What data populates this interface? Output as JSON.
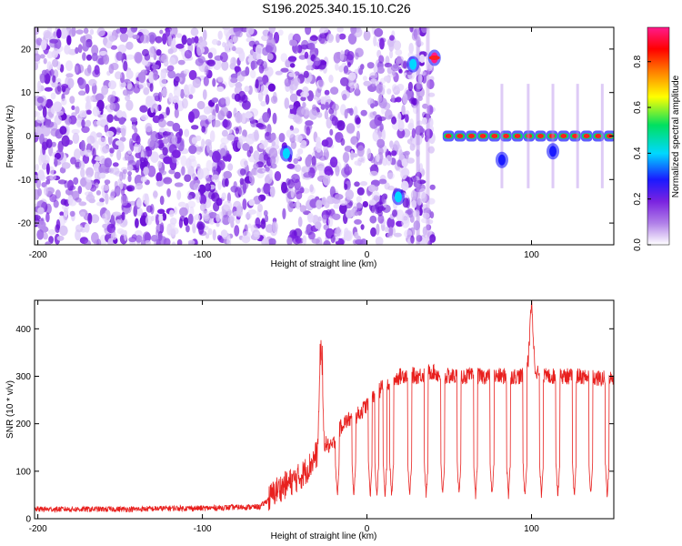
{
  "title": "S196.2025.340.15.10.C26",
  "chart_data": [
    {
      "type": "heatmap",
      "xlabel": "Height of straight line (km)",
      "ylabel": "Frequency (Hz)",
      "xlim": [
        -202,
        150
      ],
      "ylim": [
        -25,
        25
      ],
      "x_ticks": [
        "-200",
        "-100",
        "0",
        "100"
      ],
      "y_ticks": [
        "-20",
        "-10",
        "0",
        "10",
        "20"
      ],
      "colorbar": {
        "label": "Normalized spectral amplitude",
        "range": [
          0.0,
          0.95
        ],
        "ticks": [
          "0.0",
          "0.2",
          "0.4",
          "0.6",
          "0.8"
        ]
      },
      "colormap": [
        "#ffffff",
        "#b07fe8",
        "#7a22e0",
        "#1a1aff",
        "#00d8ff",
        "#00e060",
        "#ffff00",
        "#ff7a00",
        "#ff0000",
        "#ff1a8c"
      ],
      "features": [
        {
          "x": -49,
          "y": -4,
          "amplitude": 0.4
        },
        {
          "x": 19,
          "y": -14,
          "amplitude": 0.45
        },
        {
          "x": 28,
          "y": 16.5,
          "amplitude": 0.45
        },
        {
          "x": 41,
          "y": 18,
          "amplitude": 0.9
        },
        {
          "x": 82,
          "y": -5.5,
          "amplitude": 0.35
        },
        {
          "x": 113,
          "y": -3.5,
          "amplitude": 0.3
        }
      ],
      "carrier": {
        "x_start": 46,
        "x_end": 150,
        "y": 0,
        "amplitude": 0.95
      }
    },
    {
      "type": "line",
      "xlabel": "Height of straight line (km)",
      "ylabel": "SNR (10 * v/v)",
      "xlim": [
        -202,
        150
      ],
      "ylim": [
        0,
        460
      ],
      "x_ticks": [
        "-200",
        "-100",
        "0",
        "100"
      ],
      "y_ticks": [
        "0",
        "100",
        "200",
        "300",
        "400"
      ],
      "series": [
        {
          "color": "#e8201e",
          "x": [
            -202,
            -180,
            -160,
            -140,
            -120,
            -100,
            -80,
            -65,
            -60,
            -55,
            -50,
            -45,
            -40,
            -35,
            -30,
            -28,
            -26,
            -22,
            -20,
            -15,
            -10,
            -5,
            0,
            5,
            10,
            15,
            20,
            25,
            30,
            35,
            40,
            45,
            50,
            60,
            70,
            80,
            90,
            95,
            98,
            100,
            102,
            105,
            110,
            120,
            130,
            140,
            150
          ],
          "values": [
            20,
            20,
            20,
            20,
            22,
            22,
            24,
            25,
            40,
            60,
            70,
            80,
            90,
            110,
            140,
            375,
            160,
            150,
            160,
            200,
            210,
            220,
            240,
            260,
            280,
            290,
            300,
            305,
            300,
            305,
            310,
            300,
            300,
            300,
            300,
            300,
            300,
            300,
            330,
            460,
            320,
            300,
            300,
            300,
            300,
            295,
            295
          ]
        }
      ],
      "dropouts": [
        -18,
        -8,
        2,
        6,
        11,
        15,
        26,
        36,
        46,
        56,
        66,
        76,
        86,
        96,
        106,
        116,
        126,
        136,
        146
      ]
    }
  ]
}
